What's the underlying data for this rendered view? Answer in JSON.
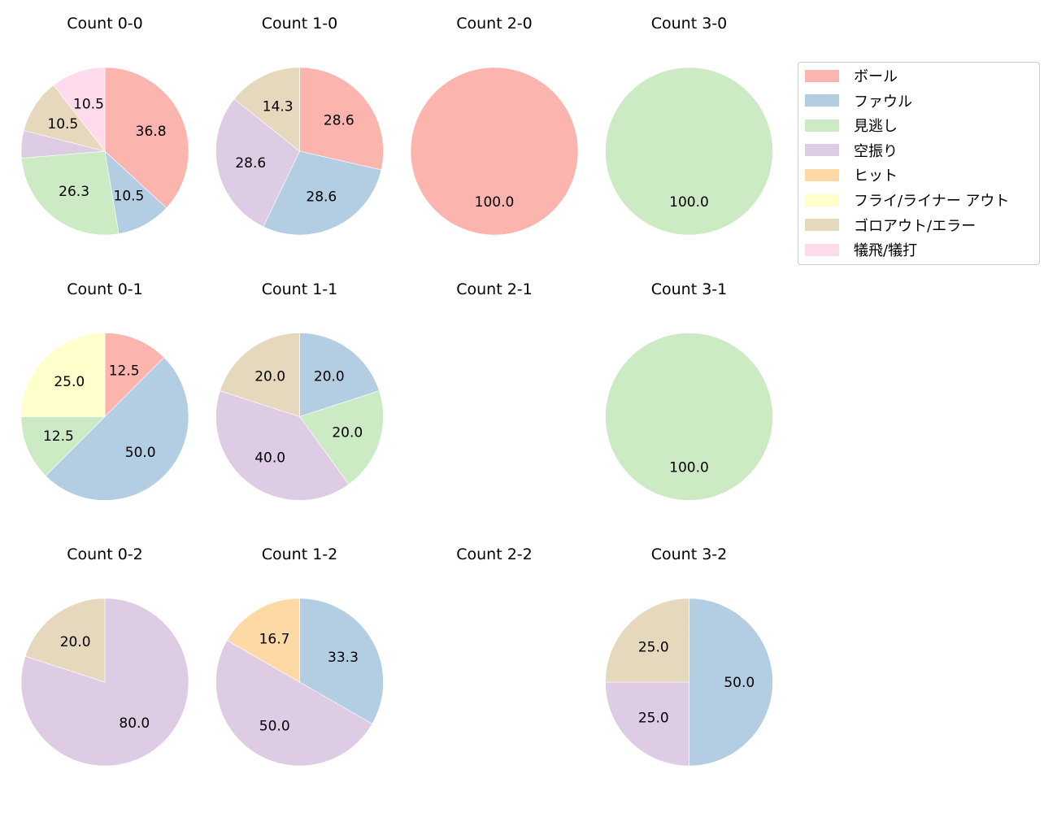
{
  "chart_data": {
    "type": "pie",
    "legend": {
      "position": "upper right",
      "entries": [
        {
          "label": "ボール",
          "color": "#fbb4ae"
        },
        {
          "label": "ファウル",
          "color": "#b3cde3"
        },
        {
          "label": "見逃し",
          "color": "#ccebc5"
        },
        {
          "label": "空振り",
          "color": "#decbe4"
        },
        {
          "label": "ヒット",
          "color": "#fed9a6"
        },
        {
          "label": "フライ/ライナー アウト",
          "color": "#ffffcc"
        },
        {
          "label": "ゴロアウト/エラー",
          "color": "#e5d8bd"
        },
        {
          "label": "犠飛/犠打",
          "color": "#fddaec"
        }
      ]
    },
    "categories": [
      "ボール",
      "ファウル",
      "見逃し",
      "空振り",
      "ヒット",
      "フライ/ライナー アウト",
      "ゴロアウト/エラー",
      "犠飛/犠打"
    ],
    "pies": [
      {
        "title": "Count 0-0",
        "row": 0,
        "col": 0,
        "values": [
          36.8,
          10.5,
          26.3,
          5.3,
          0,
          0,
          10.5,
          10.5
        ],
        "labels": [
          "36.8",
          "10.5",
          "26.3",
          "",
          "",
          "",
          "10.5",
          "10.5"
        ]
      },
      {
        "title": "Count 1-0",
        "row": 0,
        "col": 1,
        "values": [
          28.6,
          28.6,
          0,
          28.6,
          0,
          0,
          14.3,
          0
        ],
        "labels": [
          "28.6",
          "28.6",
          "",
          "28.6",
          "",
          "",
          "14.3",
          ""
        ]
      },
      {
        "title": "Count 2-0",
        "row": 0,
        "col": 2,
        "values": [
          100.0,
          0,
          0,
          0,
          0,
          0,
          0,
          0
        ],
        "labels": [
          "100.0",
          "",
          "",
          "",
          "",
          "",
          "",
          ""
        ]
      },
      {
        "title": "Count 3-0",
        "row": 0,
        "col": 3,
        "values": [
          0,
          0,
          100.0,
          0,
          0,
          0,
          0,
          0
        ],
        "labels": [
          "",
          "",
          "100.0",
          "",
          "",
          "",
          "",
          ""
        ]
      },
      {
        "title": "Count 0-1",
        "row": 1,
        "col": 0,
        "values": [
          12.5,
          50.0,
          12.5,
          0,
          0,
          25.0,
          0,
          0
        ],
        "labels": [
          "12.5",
          "50.0",
          "12.5",
          "",
          "",
          "25.0",
          "",
          ""
        ]
      },
      {
        "title": "Count 1-1",
        "row": 1,
        "col": 1,
        "values": [
          0,
          20.0,
          20.0,
          40.0,
          0,
          0,
          20.0,
          0
        ],
        "labels": [
          "",
          "20.0",
          "20.0",
          "40.0",
          "",
          "",
          "20.0",
          ""
        ]
      },
      {
        "title": "Count 2-1",
        "row": 1,
        "col": 2,
        "values": [],
        "labels": []
      },
      {
        "title": "Count 3-1",
        "row": 1,
        "col": 3,
        "values": [
          0,
          0,
          100.0,
          0,
          0,
          0,
          0,
          0
        ],
        "labels": [
          "",
          "",
          "100.0",
          "",
          "",
          "",
          "",
          ""
        ]
      },
      {
        "title": "Count 0-2",
        "row": 2,
        "col": 0,
        "values": [
          0,
          0,
          0,
          80.0,
          0,
          0,
          20.0,
          0
        ],
        "labels": [
          "",
          "",
          "",
          "80.0",
          "",
          "",
          "20.0",
          ""
        ]
      },
      {
        "title": "Count 1-2",
        "row": 2,
        "col": 1,
        "values": [
          0,
          33.3,
          0,
          50.0,
          16.7,
          0,
          0,
          0
        ],
        "labels": [
          "",
          "33.3",
          "",
          "50.0",
          "16.7",
          "",
          "",
          ""
        ]
      },
      {
        "title": "Count 2-2",
        "row": 2,
        "col": 2,
        "values": [],
        "labels": []
      },
      {
        "title": "Count 3-2",
        "row": 2,
        "col": 3,
        "values": [
          0,
          50.0,
          0,
          25.0,
          0,
          0,
          25.0,
          0
        ],
        "labels": [
          "",
          "50.0",
          "",
          "25.0",
          "",
          "",
          "25.0",
          ""
        ]
      }
    ],
    "start_angle": 90,
    "direction": "clockwise",
    "grid": false
  }
}
